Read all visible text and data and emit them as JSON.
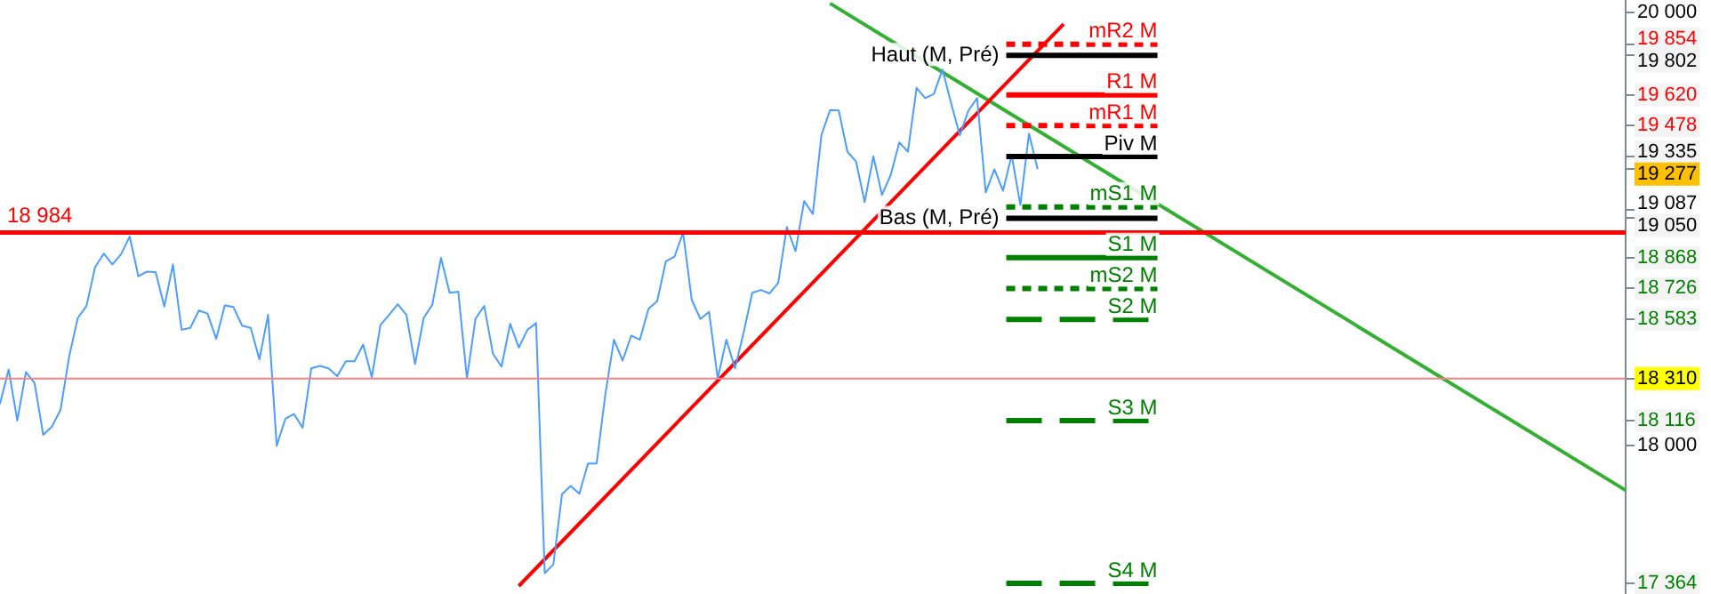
{
  "chart_data": {
    "type": "line",
    "categories": [
      null,
      null,
      null,
      null,
      null,
      null,
      null,
      null,
      null,
      null,
      null,
      null,
      null,
      null,
      null,
      null,
      null,
      null,
      null,
      null,
      null,
      null,
      null,
      null,
      null,
      null,
      null,
      null,
      null,
      null,
      null,
      null,
      null,
      null,
      null,
      null,
      null,
      null,
      null,
      null,
      null,
      null,
      null,
      null,
      null,
      null,
      null,
      null,
      null,
      null,
      null,
      null,
      null,
      null,
      null,
      null,
      null,
      null,
      null,
      null,
      null,
      null,
      null,
      null,
      null,
      null,
      null,
      null,
      null,
      null,
      null,
      null,
      null,
      null,
      null,
      null,
      null,
      null,
      null,
      null,
      null,
      null,
      null,
      null,
      null,
      null,
      null,
      null,
      null,
      null,
      null,
      null,
      null,
      null,
      null,
      null,
      null,
      null,
      null,
      null,
      null,
      null,
      null,
      null,
      null,
      null,
      null,
      null,
      null,
      null,
      null,
      null,
      null,
      null,
      null,
      null,
      null,
      null,
      null,
      null,
      null,
      null,
      null,
      null,
      null,
      null,
      null,
      null,
      null,
      null,
      null,
      null,
      null,
      null,
      null,
      null,
      null,
      null,
      null,
      null,
      null,
      null,
      null,
      null,
      null,
      null,
      null,
      null,
      null,
      null,
      null,
      null,
      null,
      null,
      null,
      null,
      null,
      null,
      null,
      null,
      null,
      null,
      null,
      null,
      null,
      null,
      null,
      null,
      null,
      null,
      null,
      null,
      null,
      null,
      null,
      null,
      null,
      null,
      null,
      null,
      null,
      null,
      null,
      null,
      null,
      null,
      null,
      null,
      null
    ],
    "series": [
      {
        "color": "#4a9eff",
        "values": [
          18193,
          18352,
          18116,
          18340,
          18289,
          18050,
          18088,
          18165,
          18412,
          18590,
          18645,
          18824,
          18887,
          18837,
          18884,
          18966,
          18782,
          18804,
          18801,
          18642,
          18837,
          18535,
          18544,
          18624,
          18610,
          18494,
          18648,
          18640,
          18554,
          18544,
          18398,
          18604,
          18000,
          18124,
          18146,
          18083,
          18357,
          18368,
          18357,
          18321,
          18390,
          18390,
          18467,
          18316,
          18558,
          18604,
          18653,
          18604,
          18377,
          18590,
          18651,
          18867,
          18706,
          18711,
          18311,
          18587,
          18645,
          18426,
          18365,
          18563,
          18453,
          18535,
          18566,
          17411,
          17452,
          17776,
          17814,
          17778,
          17918,
          17918,
          18234,
          18489,
          18393,
          18508,
          18489,
          18632,
          18667,
          18851,
          18873,
          18984,
          18673,
          18585,
          18618,
          18310,
          18489,
          18357,
          18522,
          18706,
          18719,
          18703,
          18752,
          19010,
          18898,
          19130,
          19070,
          19435,
          19550,
          19548,
          19358,
          19312,
          19125,
          19336,
          19158,
          19249,
          19400,
          19358,
          19652,
          19605,
          19624,
          19737,
          19581,
          19433,
          19548,
          19605,
          19169,
          19276,
          19177,
          19342,
          19112,
          19441,
          19277,
          null,
          null,
          null,
          null,
          null,
          null,
          null,
          null,
          null,
          null,
          null,
          null,
          null,
          null,
          null,
          null,
          null,
          null,
          null,
          null,
          null,
          null,
          null,
          null,
          null,
          null,
          null,
          null,
          null,
          null,
          null,
          null,
          null,
          null,
          null,
          null,
          null,
          null,
          null,
          null,
          null,
          null,
          null,
          null,
          null,
          null,
          null,
          null,
          null,
          null,
          null,
          null,
          null,
          null,
          null,
          null,
          null,
          null,
          null,
          null,
          null,
          null,
          null,
          null,
          null,
          null,
          null,
          null
        ]
      },
      {
        "type": "line",
        "color": "#ff0000",
        "values": [
          null,
          null,
          null,
          null,
          null,
          null,
          null,
          null,
          null,
          null,
          null,
          null,
          null,
          null,
          null,
          null,
          null,
          null,
          null,
          null,
          null,
          null,
          null,
          null,
          null,
          null,
          null,
          null,
          null,
          null,
          null,
          null,
          null,
          null,
          null,
          null,
          null,
          null,
          null,
          null,
          null,
          null,
          null,
          null,
          null,
          null,
          null,
          null,
          null,
          null,
          null,
          null,
          null,
          null,
          null,
          null,
          null,
          null,
          null,
          null,
          17352,
          null,
          null,
          null,
          null,
          null,
          null,
          null,
          null,
          null,
          null,
          null,
          null,
          null,
          null,
          null,
          null,
          null,
          null,
          null,
          null,
          null,
          null,
          null,
          null,
          null,
          null,
          null,
          null,
          null,
          null,
          null,
          null,
          null,
          null,
          null,
          null,
          null,
          null,
          null,
          null,
          null,
          null,
          null,
          null,
          null,
          null,
          null,
          null,
          null,
          null,
          null,
          null,
          null,
          null,
          null,
          null,
          null,
          null,
          null,
          null,
          null,
          null,
          19947,
          null,
          null,
          null,
          null,
          null,
          null,
          null,
          null,
          null,
          null,
          null,
          null,
          null,
          null,
          null,
          null,
          null,
          null,
          null,
          null,
          null,
          null,
          null,
          null,
          null,
          null,
          null,
          null,
          null,
          null,
          null,
          null,
          null,
          null,
          null,
          null,
          null,
          null,
          null,
          null,
          null,
          null,
          null,
          null,
          null,
          null,
          null,
          null,
          null,
          null,
          null,
          null,
          null,
          null,
          null,
          null,
          null,
          null,
          null,
          null,
          null,
          null,
          null,
          null,
          null
        ]
      },
      {
        "type": "line",
        "color": "#33b033",
        "values": [
          null,
          null,
          null,
          null,
          null,
          null,
          null,
          null,
          null,
          null,
          null,
          null,
          null,
          null,
          null,
          null,
          null,
          null,
          null,
          null,
          null,
          null,
          null,
          null,
          null,
          null,
          null,
          null,
          null,
          null,
          null,
          null,
          null,
          null,
          null,
          null,
          null,
          null,
          null,
          null,
          null,
          null,
          null,
          null,
          null,
          null,
          null,
          null,
          null,
          null,
          null,
          null,
          null,
          null,
          null,
          null,
          null,
          null,
          null,
          null,
          null,
          null,
          null,
          null,
          null,
          null,
          null,
          null,
          null,
          null,
          null,
          null,
          null,
          null,
          null,
          null,
          null,
          null,
          null,
          null,
          null,
          null,
          null,
          null,
          null,
          null,
          null,
          null,
          null,
          null,
          null,
          null,
          null,
          null,
          null,
          null,
          20042,
          null,
          null,
          null,
          null,
          null,
          null,
          null,
          null,
          null,
          null,
          null,
          null,
          null,
          null,
          null,
          null,
          null,
          null,
          null,
          null,
          null,
          null,
          null,
          null,
          null,
          null,
          null,
          null,
          null,
          null,
          null,
          null,
          null,
          null,
          null,
          null,
          null,
          null,
          null,
          null,
          null,
          null,
          null,
          null,
          null,
          null,
          null,
          null,
          null,
          null,
          null,
          null,
          null,
          null,
          null,
          null,
          null,
          null,
          null,
          null,
          null,
          null,
          null,
          null,
          null,
          null,
          null,
          null,
          null,
          null,
          null,
          null,
          null,
          null,
          null,
          null,
          null,
          null,
          null,
          null,
          null,
          null,
          null,
          null,
          null,
          null,
          null,
          null,
          null,
          null,
          null,
          17794
        ]
      }
    ],
    "ylim": [
      17315,
      20058
    ],
    "yticks": [
      {
        "value": 20000,
        "label": "20 000"
      },
      {
        "value": 19854,
        "label": "19 854"
      },
      {
        "value": 19802,
        "label": "19 802"
      },
      {
        "value": 19620,
        "label": "19 620"
      },
      {
        "value": 19478,
        "label": "19 478"
      },
      {
        "value": 19335,
        "label": "19 335"
      },
      {
        "value": 19277,
        "label": "19 277"
      },
      {
        "value": 19087,
        "label": "19 087"
      },
      {
        "value": 19050,
        "label": "19 050"
      },
      {
        "value": 18868,
        "label": "18 868"
      },
      {
        "value": 18726,
        "label": "18 726"
      },
      {
        "value": 18583,
        "label": "18 583"
      },
      {
        "value": 18310,
        "label": "18 310"
      },
      {
        "value": 18116,
        "label": "18 116"
      },
      {
        "value": 18000,
        "label": "18 000"
      },
      {
        "value": 17364,
        "label": "17 364"
      }
    ],
    "tick_labels": "y",
    "ref_lines": [
      {
        "axis": "y",
        "value": 19854,
        "label": "mR2 M",
        "color": "#ff0000",
        "line_style": "dotted"
      },
      {
        "axis": "y",
        "value": 19802,
        "label": "Haut (M, Pré)",
        "color": "#000000",
        "line_style": "solid"
      },
      {
        "axis": "y",
        "value": 19620,
        "label": "R1 M",
        "color": "#ff0000",
        "line_style": "solid"
      },
      {
        "axis": "y",
        "value": 19478,
        "label": "mR1 M",
        "color": "#ff0000",
        "line_style": "dotted"
      },
      {
        "axis": "y",
        "value": 19335,
        "label": "Piv M",
        "color": "#000000",
        "line_style": "solid"
      },
      {
        "axis": "y",
        "value": 19102,
        "label": "mS1 M",
        "color": "#008000",
        "line_style": "dotted"
      },
      {
        "axis": "y",
        "value": 19050,
        "label": "Bas (M, Pré)",
        "color": "#000000",
        "line_style": "solid"
      },
      {
        "axis": "y",
        "value": 18984,
        "color": "#ff0000",
        "line_style": "solid"
      },
      {
        "axis": "y",
        "value": 18868,
        "label": "S1 M",
        "color": "#008000",
        "line_style": "solid"
      },
      {
        "axis": "y",
        "value": 18726,
        "label": "mS2 M",
        "color": "#008000",
        "line_style": "dotted"
      },
      {
        "axis": "y",
        "value": 18583,
        "label": "S2 M",
        "color": "#008000",
        "line_style": "dashed"
      },
      {
        "axis": "y",
        "value": 18310,
        "color": "#ff8080",
        "line_style": "solid"
      },
      {
        "axis": "y",
        "value": 18116,
        "label": "S3 M",
        "color": "#008000",
        "line_style": "dashed"
      },
      {
        "axis": "y",
        "value": 17364,
        "label": "S4 M",
        "color": "#008000",
        "line_style": "dashed"
      }
    ],
    "annotations": [
      {
        "text": "18 984",
        "y": 18984
      }
    ],
    "legend": false
  }
}
